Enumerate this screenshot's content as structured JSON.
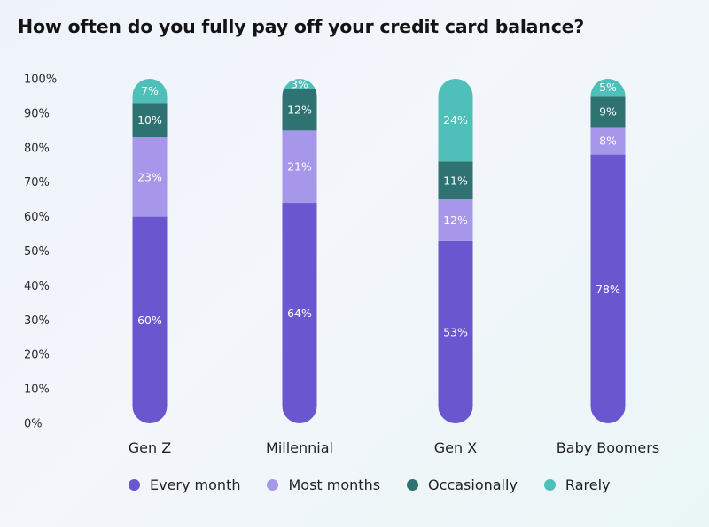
{
  "chart_data": {
    "type": "bar",
    "stacked": true,
    "title": "How often do you fully pay off your credit card balance?",
    "categories": [
      "Gen Z",
      "Millennial",
      "Gen X",
      "Baby Boomers"
    ],
    "ylim": [
      0,
      100
    ],
    "yticks": [
      "0%",
      "10%",
      "20%",
      "30%",
      "40%",
      "50%",
      "60%",
      "70%",
      "80%",
      "90%",
      "100%"
    ],
    "series": [
      {
        "name": "Every month",
        "color": "#6a57cf",
        "values": [
          60,
          64,
          53,
          78
        ],
        "labels": [
          "60%",
          "64%",
          "53%",
          "78%"
        ]
      },
      {
        "name": "Most months",
        "color": "#a697ea",
        "values": [
          23,
          21,
          12,
          8
        ],
        "labels": [
          "23%",
          "21%",
          "12%",
          "8%"
        ]
      },
      {
        "name": "Occasionally",
        "color": "#2f7272",
        "values": [
          10,
          12,
          11,
          9
        ],
        "labels": [
          "10%",
          "12%",
          "11%",
          "9%"
        ]
      },
      {
        "name": "Rarely",
        "color": "#4fbfb9",
        "values": [
          7,
          3,
          24,
          5
        ],
        "labels": [
          "7%",
          "3%",
          "24%",
          "5%"
        ]
      }
    ],
    "legend_position": "bottom",
    "grid": false
  }
}
